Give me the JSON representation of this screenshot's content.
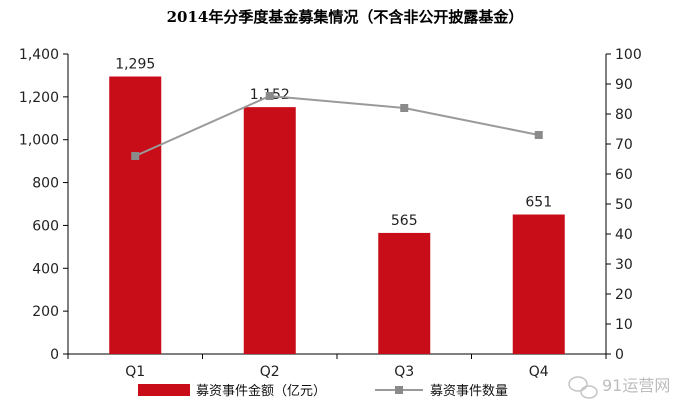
{
  "chart_data": {
    "type": "bar",
    "title": "2014年分季度基金募集情况（不含非公开披露基金）",
    "categories": [
      "Q1",
      "Q2",
      "Q3",
      "Q4"
    ],
    "series": [
      {
        "name": "募资事件金额（亿元）",
        "type": "bar",
        "axis": "left",
        "color": "#c80d19",
        "values": [
          1295,
          1152,
          565,
          651
        ],
        "labels": [
          "1,295",
          "1,152",
          "565",
          "651"
        ]
      },
      {
        "name": "募资事件数量",
        "type": "line",
        "axis": "right",
        "color": "#9a9a9a",
        "values": [
          66,
          86,
          82,
          73
        ]
      }
    ],
    "y_left": {
      "lim": [
        0,
        1400
      ],
      "ticks": [
        0,
        200,
        400,
        600,
        800,
        1000,
        1200,
        1400
      ],
      "tick_labels": [
        "0",
        "200",
        "400",
        "600",
        "800",
        "1,000",
        "1,200",
        "1,400"
      ]
    },
    "y_right": {
      "lim": [
        0,
        100
      ],
      "ticks": [
        0,
        10,
        20,
        30,
        40,
        50,
        60,
        70,
        80,
        90,
        100
      ],
      "tick_labels": [
        "0",
        "10",
        "20",
        "30",
        "40",
        "50",
        "60",
        "70",
        "80",
        "90",
        "100"
      ]
    },
    "grid": false,
    "legend_position": "bottom"
  },
  "watermark": {
    "text": "91运营网",
    "icon": "wechat-icon"
  }
}
